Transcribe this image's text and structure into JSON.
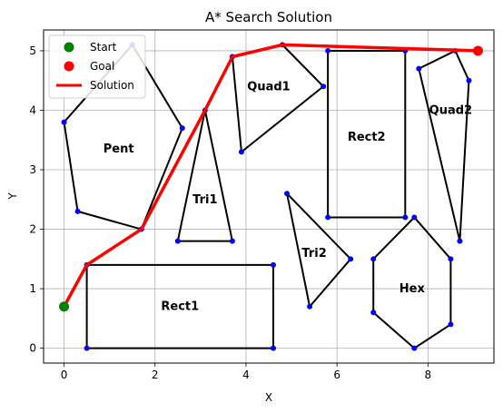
{
  "chart_data": {
    "type": "scatter",
    "title": "A* Search Solution",
    "xlabel": "X",
    "ylabel": "Y",
    "xlim": [
      -0.45,
      9.45
    ],
    "ylim": [
      -0.25,
      5.35
    ],
    "xticks": [
      0,
      2,
      4,
      6,
      8
    ],
    "yticks": [
      0,
      1,
      2,
      3,
      4,
      5
    ],
    "grid": true,
    "legend_position": "upper-left",
    "legend": [
      {
        "label": "Start",
        "kind": "marker",
        "color": "#008000"
      },
      {
        "label": "Goal",
        "kind": "marker",
        "color": "#ff0000"
      },
      {
        "label": "Solution",
        "kind": "line",
        "color": "#ff0000"
      }
    ],
    "obstacles": [
      {
        "name": "Pent",
        "label_at": [
          1.2,
          3.35
        ],
        "points": [
          [
            0,
            3.8
          ],
          [
            1.5,
            5.1
          ],
          [
            2.6,
            3.7
          ],
          [
            1.7,
            2.0
          ],
          [
            0.3,
            2.3
          ]
        ]
      },
      {
        "name": "Tri1",
        "label_at": [
          3.1,
          2.5
        ],
        "points": [
          [
            3.1,
            4.0
          ],
          [
            3.7,
            1.8
          ],
          [
            2.5,
            1.8
          ]
        ]
      },
      {
        "name": "Quad1",
        "label_at": [
          4.5,
          4.4
        ],
        "points": [
          [
            3.7,
            4.9
          ],
          [
            4.8,
            5.1
          ],
          [
            5.7,
            4.4
          ],
          [
            3.9,
            3.3
          ]
        ]
      },
      {
        "name": "Rect2",
        "label_at": [
          6.65,
          3.55
        ],
        "points": [
          [
            5.8,
            2.2
          ],
          [
            7.5,
            2.2
          ],
          [
            7.5,
            5.0
          ],
          [
            5.8,
            5.0
          ]
        ]
      },
      {
        "name": "Quad2",
        "label_at": [
          8.5,
          4.0
        ],
        "points": [
          [
            7.8,
            4.7
          ],
          [
            8.6,
            5.0
          ],
          [
            8.9,
            4.5
          ],
          [
            8.7,
            1.8
          ]
        ]
      },
      {
        "name": "Tri2",
        "label_at": [
          5.5,
          1.6
        ],
        "points": [
          [
            4.9,
            2.6
          ],
          [
            6.3,
            1.5
          ],
          [
            5.4,
            0.7
          ]
        ]
      },
      {
        "name": "Hex",
        "label_at": [
          7.65,
          1.0
        ],
        "points": [
          [
            7.7,
            2.2
          ],
          [
            8.5,
            1.5
          ],
          [
            8.5,
            0.4
          ],
          [
            7.7,
            0.0
          ],
          [
            6.8,
            0.6
          ],
          [
            6.8,
            1.5
          ]
        ]
      },
      {
        "name": "Rect1",
        "label_at": [
          2.55,
          0.7
        ],
        "points": [
          [
            0.5,
            0.0
          ],
          [
            4.6,
            0.0
          ],
          [
            4.6,
            1.4
          ],
          [
            0.5,
            1.4
          ]
        ]
      }
    ],
    "start": [
      0,
      0.7
    ],
    "goal": [
      9.1,
      5.0
    ],
    "solution_path": [
      [
        0,
        0.7
      ],
      [
        0.5,
        1.4
      ],
      [
        1.7,
        2.0
      ],
      [
        3.1,
        4.0
      ],
      [
        3.7,
        4.9
      ],
      [
        4.8,
        5.1
      ],
      [
        9.1,
        5.0
      ]
    ],
    "colors": {
      "obstacle_edge": "#000000",
      "vertex": "#0000ff",
      "grid": "#b0b0b0",
      "path": "#ff0000",
      "start": "#008000",
      "goal": "#ff0000"
    }
  }
}
